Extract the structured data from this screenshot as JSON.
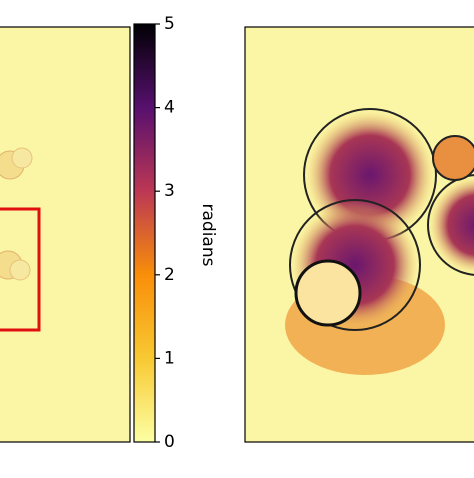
{
  "chart_data": {
    "type": "colorbar",
    "label": "radians",
    "ylim": [
      0,
      5
    ],
    "yticks": [
      0,
      1,
      2,
      3,
      4,
      5
    ],
    "colormap": [
      "#fcffa4",
      "#f8c932",
      "#f98e09",
      "#bc3754",
      "#57106e",
      "#000004"
    ]
  }
}
